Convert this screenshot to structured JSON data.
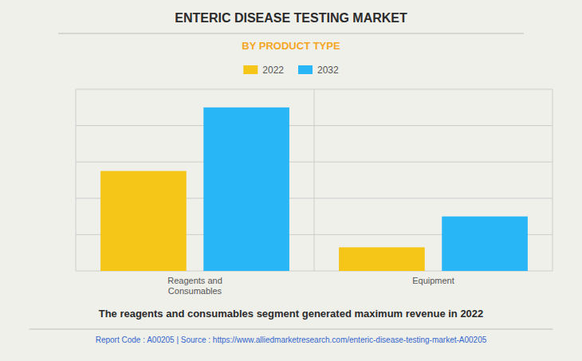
{
  "chart_data": {
    "type": "bar",
    "title": "ENTERIC DISEASE TESTING MARKET",
    "subtitle": "BY PRODUCT TYPE",
    "categories": [
      "Reagents and\nConsumables",
      "Equipment"
    ],
    "series": [
      {
        "name": "2022",
        "color": "#F5C518",
        "values": [
          55,
          13
        ]
      },
      {
        "name": "2032",
        "color": "#29B6F6",
        "values": [
          90,
          30
        ]
      }
    ],
    "ylim": [
      0,
      100
    ],
    "yticks": [
      0,
      20,
      40,
      60,
      80,
      100
    ],
    "grid": true,
    "legend": "top",
    "tick_labels": "x",
    "annotations": [
      "The reagents and consumables segment generated maximum revenue in 2022",
      "Report Code : A00205  |  Source : https://www.alliedmarketresearch.com/enteric-disease-testing-market-A00205"
    ]
  }
}
